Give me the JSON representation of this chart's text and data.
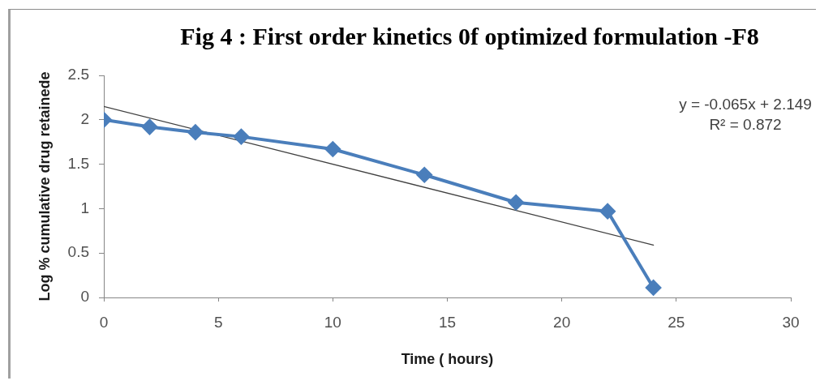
{
  "chart_data": {
    "type": "line",
    "title": "Fig 4 : First order kinetics 0f optimized formulation -F8",
    "xlabel": "Time ( hours)",
    "ylabel": "Log % cumulative drug retainede",
    "xlim": [
      0,
      30
    ],
    "xticks": [
      0,
      5,
      10,
      15,
      20,
      25,
      30
    ],
    "ylim": [
      0,
      2.5
    ],
    "yticks": [
      0,
      0.5,
      1,
      1.5,
      2,
      2.5
    ],
    "grid": false,
    "legend": false,
    "series": [
      {
        "color": "#4a7ebb",
        "marker": "diamond",
        "line_style": "solid",
        "x": [
          0,
          2,
          4,
          6,
          10,
          14,
          18,
          22,
          24
        ],
        "values": [
          2.0,
          1.92,
          1.86,
          1.81,
          1.67,
          1.38,
          1.07,
          0.97,
          0.11
        ]
      },
      {
        "color": "#404040",
        "marker": "none",
        "line_style": "solid",
        "x": [
          0,
          24
        ],
        "values": [
          2.15,
          0.59
        ]
      }
    ],
    "annotations": [
      "y = -0.065x + 2.149",
      "R² = 0.872"
    ]
  }
}
